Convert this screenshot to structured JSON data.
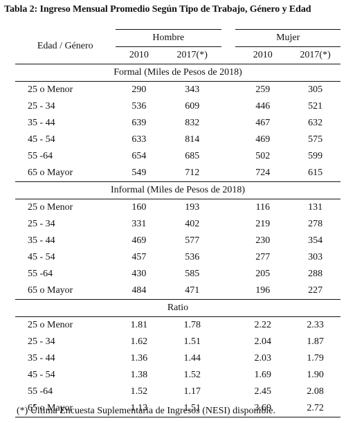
{
  "title": "Tabla 2: Ingreso Mensual Promedio Según Tipo de Trabajo, Género y Edad",
  "header": {
    "row_label": "Edad / Género",
    "groups": [
      "Hombre",
      "Mujer"
    ],
    "years": [
      "2010",
      "2017(*)",
      "2010",
      "2017(*)"
    ]
  },
  "sections": [
    {
      "label": "Formal (Miles de Pesos de 2018)",
      "rows": [
        {
          "age": "25 o Menor",
          "values": [
            "290",
            "343",
            "259",
            "305"
          ]
        },
        {
          "age": "25 - 34",
          "values": [
            "536",
            "609",
            "446",
            "521"
          ]
        },
        {
          "age": "35 - 44",
          "values": [
            "639",
            "832",
            "467",
            "632"
          ]
        },
        {
          "age": "45 - 54",
          "values": [
            "633",
            "814",
            "469",
            "575"
          ]
        },
        {
          "age": "55 -64",
          "values": [
            "654",
            "685",
            "502",
            "599"
          ]
        },
        {
          "age": "65 o Mayor",
          "values": [
            "549",
            "712",
            "724",
            "615"
          ]
        }
      ]
    },
    {
      "label": "Informal (Miles de Pesos de 2018)",
      "rows": [
        {
          "age": "25 o Menor",
          "values": [
            "160",
            "193",
            "116",
            "131"
          ]
        },
        {
          "age": "25 - 34",
          "values": [
            "331",
            "402",
            "219",
            "278"
          ]
        },
        {
          "age": "35 - 44",
          "values": [
            "469",
            "577",
            "230",
            "354"
          ]
        },
        {
          "age": "45 - 54",
          "values": [
            "457",
            "536",
            "277",
            "303"
          ]
        },
        {
          "age": "55 -64",
          "values": [
            "430",
            "585",
            "205",
            "288"
          ]
        },
        {
          "age": "65 o Mayor",
          "values": [
            "484",
            "471",
            "196",
            "227"
          ]
        }
      ]
    },
    {
      "label": "Ratio",
      "rows": [
        {
          "age": "25 o Menor",
          "values": [
            "1.81",
            "1.78",
            "2.22",
            "2.33"
          ]
        },
        {
          "age": "25 - 34",
          "values": [
            "1.62",
            "1.51",
            "2.04",
            "1.87"
          ]
        },
        {
          "age": "35 - 44",
          "values": [
            "1.36",
            "1.44",
            "2.03",
            "1.79"
          ]
        },
        {
          "age": "45 - 54",
          "values": [
            "1.38",
            "1.52",
            "1.69",
            "1.90"
          ]
        },
        {
          "age": "55 -64",
          "values": [
            "1.52",
            "1.17",
            "2.45",
            "2.08"
          ]
        },
        {
          "age": "65 o Mayor",
          "values": [
            "1.13",
            "1.51",
            "3.69",
            "2.72"
          ]
        }
      ]
    }
  ],
  "footnote": "(*) Última Encuesta Suplementaria de Ingresos (NESI) disponible."
}
